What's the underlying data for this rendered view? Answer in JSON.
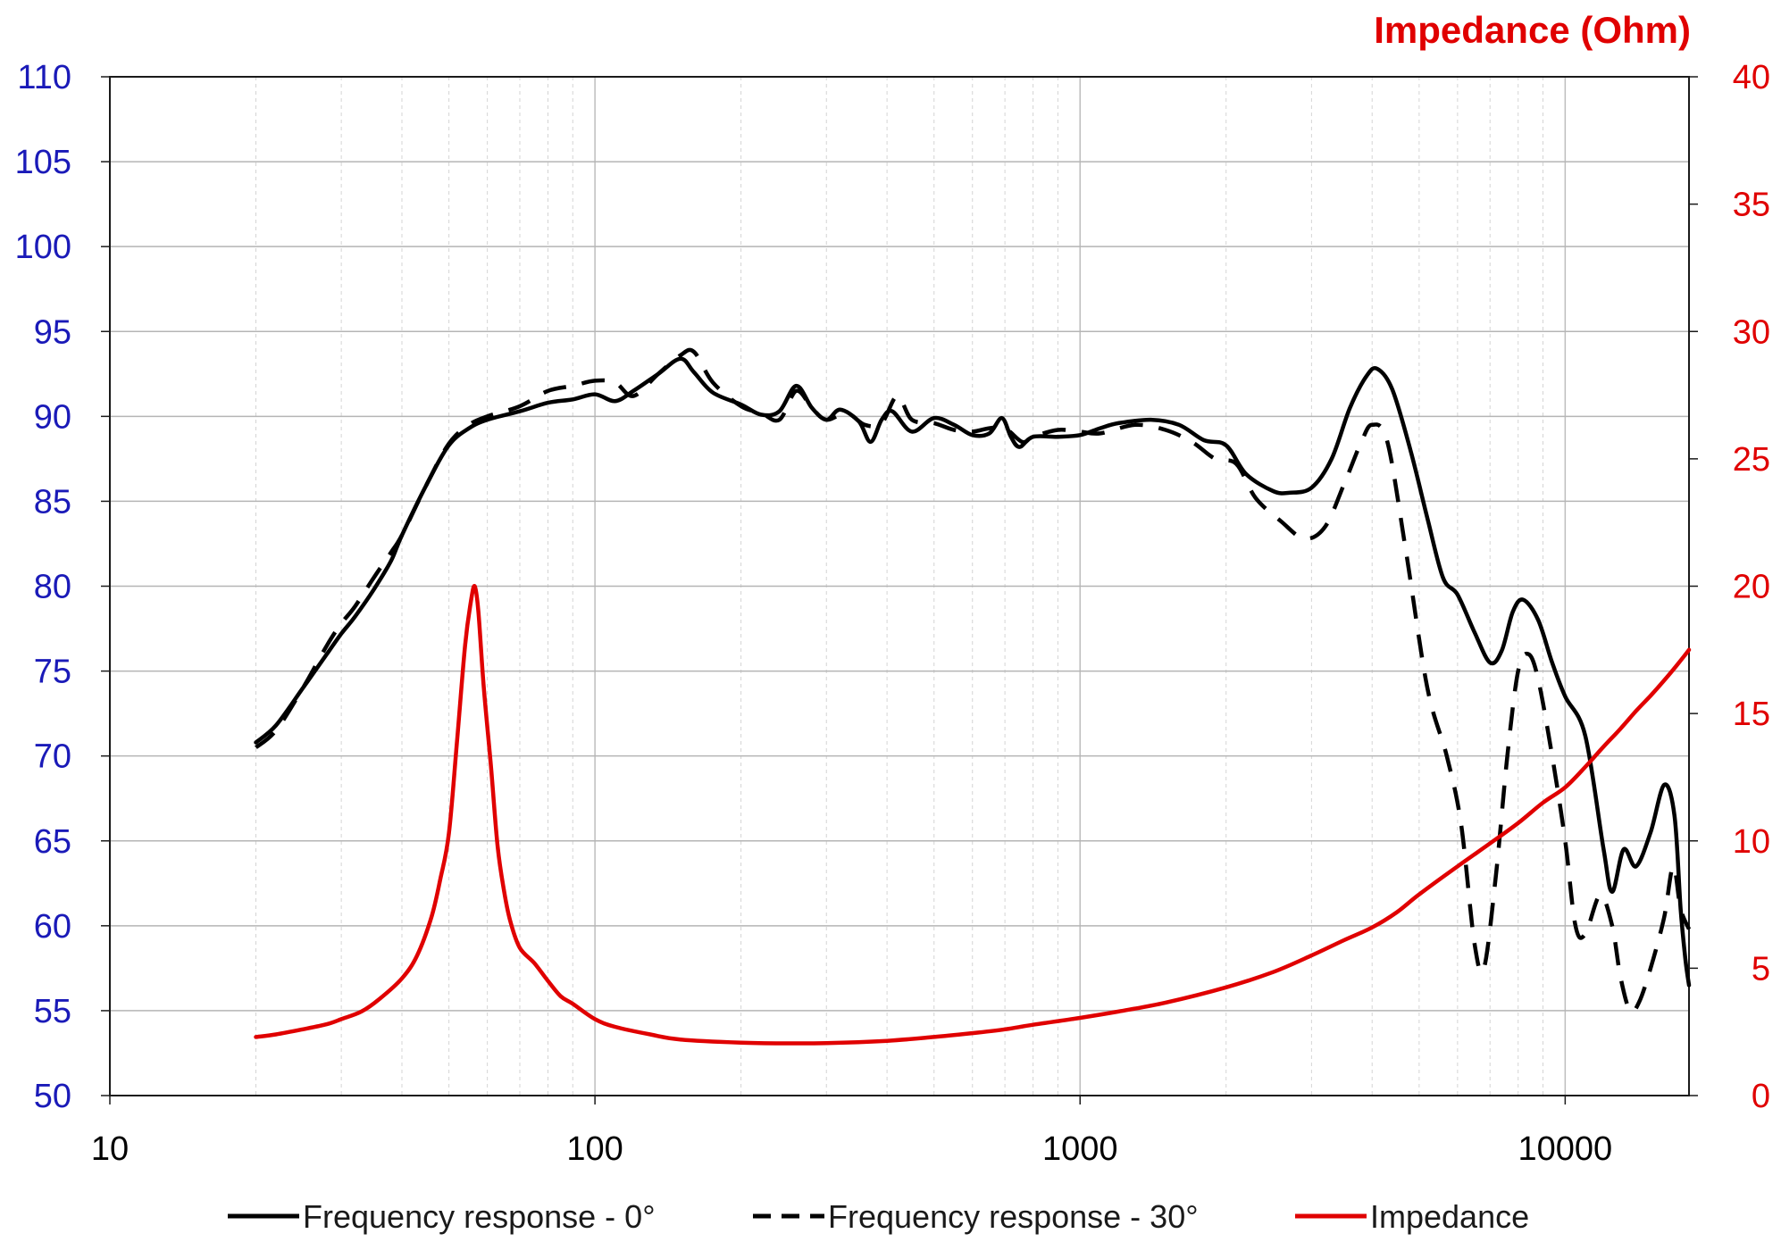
{
  "chart_data": {
    "type": "line",
    "title": "",
    "xlabel": "",
    "ylabel": "",
    "y2label": "Impedance (Ohm)",
    "x_scale": "log",
    "xlim": [
      10,
      18000
    ],
    "ylim": [
      50,
      110
    ],
    "y2lim": [
      0,
      40
    ],
    "x_ticks": [
      "10",
      "100",
      "1000",
      "10000"
    ],
    "y_ticks": [
      "50",
      "55",
      "60",
      "65",
      "70",
      "75",
      "80",
      "85",
      "90",
      "95",
      "100",
      "105",
      "110"
    ],
    "y2_ticks": [
      "0",
      "5",
      "10",
      "15",
      "20",
      "25",
      "30",
      "35",
      "40"
    ],
    "grid": true,
    "legend_position": "bottom",
    "series": [
      {
        "name": "Frequency response - 0°",
        "axis": "left",
        "style": "solid",
        "color": "#000000",
        "points": [
          [
            20,
            70.8
          ],
          [
            22,
            71.8
          ],
          [
            25,
            74
          ],
          [
            28,
            76
          ],
          [
            30,
            77.2
          ],
          [
            32,
            78.2
          ],
          [
            35,
            79.8
          ],
          [
            38,
            81.5
          ],
          [
            40,
            83
          ],
          [
            45,
            86
          ],
          [
            50,
            88.3
          ],
          [
            55,
            89.3
          ],
          [
            60,
            89.8
          ],
          [
            70,
            90.3
          ],
          [
            80,
            90.8
          ],
          [
            90,
            91
          ],
          [
            100,
            91.3
          ],
          [
            110,
            90.9
          ],
          [
            120,
            91.5
          ],
          [
            135,
            92.5
          ],
          [
            150,
            93.4
          ],
          [
            160,
            92.6
          ],
          [
            175,
            91.4
          ],
          [
            200,
            90.7
          ],
          [
            220,
            90.1
          ],
          [
            240,
            90.3
          ],
          [
            260,
            91.8
          ],
          [
            280,
            90.5
          ],
          [
            300,
            89.8
          ],
          [
            320,
            90.4
          ],
          [
            350,
            89.7
          ],
          [
            370,
            88.5
          ],
          [
            390,
            89.8
          ],
          [
            410,
            90.3
          ],
          [
            450,
            89.1
          ],
          [
            500,
            89.9
          ],
          [
            550,
            89.5
          ],
          [
            600,
            88.9
          ],
          [
            650,
            89
          ],
          [
            690,
            89.9
          ],
          [
            720,
            88.8
          ],
          [
            750,
            88.2
          ],
          [
            800,
            88.8
          ],
          [
            900,
            88.8
          ],
          [
            1000,
            88.9
          ],
          [
            1100,
            89.3
          ],
          [
            1200,
            89.6
          ],
          [
            1400,
            89.8
          ],
          [
            1600,
            89.5
          ],
          [
            1800,
            88.6
          ],
          [
            2000,
            88.3
          ],
          [
            2200,
            86.6
          ],
          [
            2500,
            85.6
          ],
          [
            2700,
            85.5
          ],
          [
            3000,
            85.8
          ],
          [
            3300,
            87.5
          ],
          [
            3600,
            90.5
          ],
          [
            3900,
            92.4
          ],
          [
            4100,
            92.8
          ],
          [
            4400,
            91.6
          ],
          [
            4800,
            88
          ],
          [
            5200,
            84
          ],
          [
            5600,
            80.5
          ],
          [
            6000,
            79.5
          ],
          [
            6500,
            77.3
          ],
          [
            7000,
            75.5
          ],
          [
            7400,
            76.2
          ],
          [
            7800,
            78.5
          ],
          [
            8200,
            79.2
          ],
          [
            8800,
            78
          ],
          [
            9400,
            75.5
          ],
          [
            10000,
            73.5
          ],
          [
            11000,
            71.2
          ],
          [
            12000,
            64.5
          ],
          [
            12500,
            62
          ],
          [
            13200,
            64.5
          ],
          [
            14000,
            63.5
          ],
          [
            15000,
            65.5
          ],
          [
            16000,
            68.3
          ],
          [
            16800,
            66.5
          ],
          [
            17300,
            61
          ],
          [
            17700,
            58
          ],
          [
            18000,
            56.5
          ]
        ]
      },
      {
        "name": "Frequency response - 30°",
        "axis": "left",
        "style": "dashed",
        "color": "#000000",
        "points": [
          [
            20,
            70.5
          ],
          [
            22,
            71.5
          ],
          [
            25,
            74
          ],
          [
            28,
            76.5
          ],
          [
            30,
            77.8
          ],
          [
            32,
            78.8
          ],
          [
            35,
            80.5
          ],
          [
            38,
            82
          ],
          [
            40,
            83
          ],
          [
            45,
            86
          ],
          [
            50,
            88.4
          ],
          [
            55,
            89.5
          ],
          [
            60,
            90
          ],
          [
            70,
            90.6
          ],
          [
            80,
            91.5
          ],
          [
            90,
            91.8
          ],
          [
            100,
            92.1
          ],
          [
            110,
            92
          ],
          [
            120,
            91.2
          ],
          [
            135,
            92.5
          ],
          [
            150,
            93.6
          ],
          [
            160,
            93.8
          ],
          [
            175,
            92
          ],
          [
            200,
            90.6
          ],
          [
            220,
            90.2
          ],
          [
            240,
            89.8
          ],
          [
            260,
            91.5
          ],
          [
            280,
            90.5
          ],
          [
            300,
            89.8
          ],
          [
            330,
            90.2
          ],
          [
            360,
            89.5
          ],
          [
            390,
            89.6
          ],
          [
            420,
            91.2
          ],
          [
            450,
            89.8
          ],
          [
            500,
            89.6
          ],
          [
            550,
            89.2
          ],
          [
            600,
            89.1
          ],
          [
            650,
            89.3
          ],
          [
            700,
            89.3
          ],
          [
            760,
            88.5
          ],
          [
            800,
            88.8
          ],
          [
            900,
            89.2
          ],
          [
            1000,
            89.1
          ],
          [
            1100,
            89
          ],
          [
            1300,
            89.5
          ],
          [
            1500,
            89.2
          ],
          [
            1700,
            88.5
          ],
          [
            1900,
            87.5
          ],
          [
            2100,
            87.2
          ],
          [
            2300,
            85.2
          ],
          [
            2600,
            83.8
          ],
          [
            2900,
            82.8
          ],
          [
            3200,
            83.5
          ],
          [
            3500,
            86
          ],
          [
            3800,
            88.5
          ],
          [
            4000,
            89.5
          ],
          [
            4300,
            88.5
          ],
          [
            4700,
            82
          ],
          [
            5200,
            74
          ],
          [
            5700,
            70
          ],
          [
            6100,
            66
          ],
          [
            6500,
            59
          ],
          [
            6800,
            57.5
          ],
          [
            7200,
            63
          ],
          [
            7600,
            70
          ],
          [
            8000,
            75
          ],
          [
            8400,
            76
          ],
          [
            8800,
            74.5
          ],
          [
            9400,
            70
          ],
          [
            10000,
            65
          ],
          [
            10500,
            60
          ],
          [
            11000,
            59.5
          ],
          [
            11800,
            61.8
          ],
          [
            12500,
            60
          ],
          [
            13000,
            57
          ],
          [
            13600,
            55
          ],
          [
            14200,
            55.5
          ],
          [
            15000,
            57.5
          ],
          [
            16000,
            60.5
          ],
          [
            16700,
            63.5
          ],
          [
            17300,
            61
          ],
          [
            18000,
            59.8
          ]
        ]
      },
      {
        "name": "Impedance",
        "axis": "right",
        "style": "solid",
        "color": "#e00000",
        "points": [
          [
            20,
            2.3
          ],
          [
            22,
            2.4
          ],
          [
            25,
            2.6
          ],
          [
            28,
            2.8
          ],
          [
            30,
            3
          ],
          [
            33,
            3.3
          ],
          [
            36,
            3.8
          ],
          [
            40,
            4.6
          ],
          [
            43,
            5.5
          ],
          [
            46,
            7
          ],
          [
            48,
            8.5
          ],
          [
            50,
            10.3
          ],
          [
            52,
            14
          ],
          [
            54,
            17.7
          ],
          [
            55.5,
            19.4
          ],
          [
            56.5,
            20
          ],
          [
            57.5,
            19
          ],
          [
            59,
            16
          ],
          [
            61,
            13
          ],
          [
            63,
            9.8
          ],
          [
            65,
            8
          ],
          [
            67,
            6.8
          ],
          [
            70,
            5.8
          ],
          [
            75,
            5.2
          ],
          [
            80,
            4.5
          ],
          [
            85,
            3.9
          ],
          [
            90,
            3.6
          ],
          [
            100,
            3
          ],
          [
            110,
            2.7
          ],
          [
            130,
            2.4
          ],
          [
            150,
            2.2
          ],
          [
            200,
            2.08
          ],
          [
            250,
            2.05
          ],
          [
            300,
            2.06
          ],
          [
            400,
            2.15
          ],
          [
            500,
            2.3
          ],
          [
            600,
            2.45
          ],
          [
            700,
            2.6
          ],
          [
            800,
            2.78
          ],
          [
            1000,
            3.05
          ],
          [
            1200,
            3.3
          ],
          [
            1500,
            3.65
          ],
          [
            2000,
            4.25
          ],
          [
            2500,
            4.85
          ],
          [
            3000,
            5.5
          ],
          [
            3500,
            6.1
          ],
          [
            4000,
            6.6
          ],
          [
            4500,
            7.2
          ],
          [
            5000,
            7.9
          ],
          [
            6000,
            9
          ],
          [
            7000,
            9.9
          ],
          [
            8000,
            10.7
          ],
          [
            9000,
            11.5
          ],
          [
            10000,
            12.1
          ],
          [
            11000,
            12.9
          ],
          [
            12000,
            13.7
          ],
          [
            13000,
            14.4
          ],
          [
            14000,
            15.1
          ],
          [
            15000,
            15.7
          ],
          [
            16000,
            16.3
          ],
          [
            17000,
            16.9
          ],
          [
            18000,
            17.5
          ]
        ]
      }
    ]
  }
}
